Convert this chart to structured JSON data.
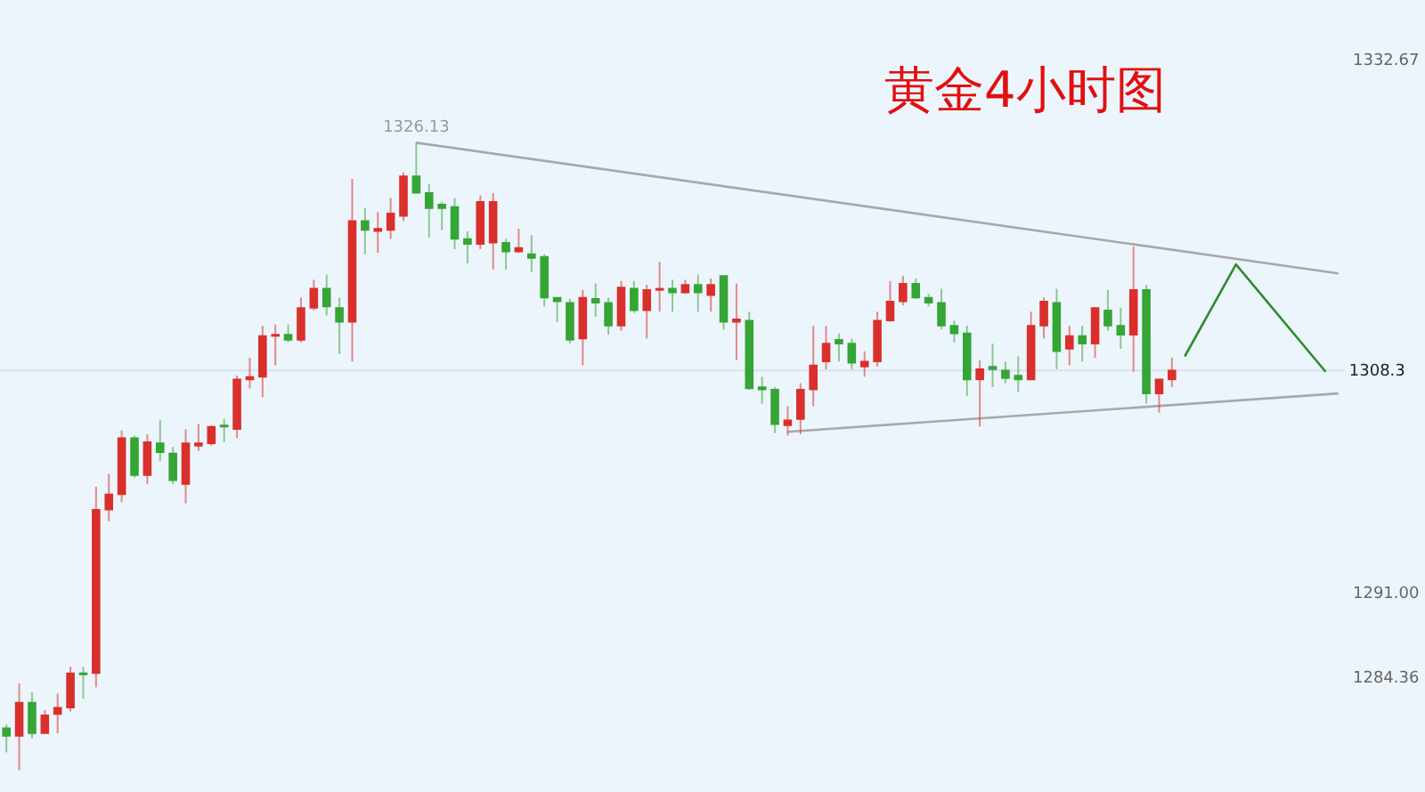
{
  "chart_data": {
    "type": "candlestick",
    "title": "黄金4小时图",
    "categories": [
      null,
      null,
      null,
      null,
      null,
      null,
      null,
      null,
      null,
      null,
      null,
      null,
      null,
      null,
      null,
      null,
      null,
      null,
      null,
      null,
      null,
      null,
      null,
      null,
      null,
      null,
      null,
      null,
      null,
      null,
      null,
      null,
      null,
      null,
      null,
      null,
      null,
      null,
      null,
      null,
      null,
      null,
      null,
      null,
      null,
      null,
      null,
      null,
      null,
      null,
      null,
      null,
      null,
      null,
      null,
      null,
      null,
      null,
      null,
      null,
      null,
      null,
      null,
      null,
      null,
      null,
      null,
      null,
      null,
      null,
      null,
      null,
      null,
      null,
      null,
      null,
      null,
      null,
      null,
      null,
      null,
      null,
      null,
      null,
      null,
      null,
      null,
      null,
      null,
      null,
      null,
      null,
      null,
      null,
      null,
      null,
      null,
      null,
      null,
      null,
      null,
      null,
      null,
      null,
      null
    ],
    "ohlc": [
      [
        1280.3,
        1280.6,
        1278.4,
        1279.7
      ],
      [
        1279.7,
        1283.8,
        1277.0,
        1282.3
      ],
      [
        1282.3,
        1283.1,
        1279.5,
        1279.9
      ],
      [
        1279.9,
        1281.7,
        1279.9,
        1281.3
      ],
      [
        1281.4,
        1283.0,
        1279.9,
        1281.9
      ],
      [
        1281.9,
        1285.1,
        1281.6,
        1284.6
      ],
      [
        1284.6,
        1285.1,
        1282.6,
        1284.5
      ],
      [
        1284.6,
        1299.2,
        1283.5,
        1297.4
      ],
      [
        1297.4,
        1300.2,
        1296.5,
        1298.6
      ],
      [
        1298.6,
        1303.6,
        1298.0,
        1303.0
      ],
      [
        1303.0,
        1303.2,
        1299.9,
        1300.1
      ],
      [
        1300.1,
        1303.3,
        1299.4,
        1302.7
      ],
      [
        1302.6,
        1304.4,
        1301.2,
        1301.9
      ],
      [
        1301.8,
        1302.3,
        1299.4,
        1299.7
      ],
      [
        1299.4,
        1303.7,
        1297.9,
        1302.6
      ],
      [
        1302.4,
        1304.1,
        1302.0,
        1302.6
      ],
      [
        1302.6,
        1304.0,
        1302.4,
        1303.9
      ],
      [
        1304.0,
        1304.5,
        1302.7,
        1303.9
      ],
      [
        1303.7,
        1307.9,
        1303.0,
        1307.6
      ],
      [
        1307.6,
        1309.3,
        1306.9,
        1307.8
      ],
      [
        1307.8,
        1311.8,
        1306.2,
        1311.0
      ],
      [
        1311.0,
        1311.9,
        1308.7,
        1311.1
      ],
      [
        1311.1,
        1311.9,
        1310.5,
        1310.7
      ],
      [
        1310.7,
        1314.0,
        1310.5,
        1313.2
      ],
      [
        1313.2,
        1315.4,
        1313.0,
        1314.7
      ],
      [
        1314.7,
        1315.8,
        1312.6,
        1313.3
      ],
      [
        1313.2,
        1314.0,
        1309.6,
        1312.1
      ],
      [
        1312.1,
        1323.3,
        1309.0,
        1320.0
      ],
      [
        1320.0,
        1321.0,
        1317.4,
        1319.3
      ],
      [
        1319.2,
        1320.7,
        1317.5,
        1319.4
      ],
      [
        1319.3,
        1321.8,
        1318.6,
        1320.6
      ],
      [
        1320.4,
        1323.8,
        1320.0,
        1323.5
      ],
      [
        1323.5,
        1326.13,
        1322.2,
        1322.2
      ],
      [
        1322.2,
        1322.9,
        1318.7,
        1321.0
      ],
      [
        1321.3,
        1321.5,
        1319.3,
        1321.0
      ],
      [
        1321.1,
        1321.8,
        1317.8,
        1318.6
      ],
      [
        1318.6,
        1319.2,
        1316.7,
        1318.2
      ],
      [
        1318.2,
        1322.0,
        1317.8,
        1321.5
      ],
      [
        1318.3,
        1322.2,
        1316.2,
        1321.5
      ],
      [
        1318.3,
        1318.6,
        1316.2,
        1317.6
      ],
      [
        1317.6,
        1319.4,
        1317.5,
        1317.9
      ],
      [
        1317.4,
        1318.9,
        1316.0,
        1317.1
      ],
      [
        1317.2,
        1317.4,
        1313.3,
        1314.0
      ],
      [
        1314.0,
        1314.0,
        1312.1,
        1313.7
      ],
      [
        1313.6,
        1313.9,
        1310.4,
        1310.7
      ],
      [
        1310.8,
        1314.6,
        1308.7,
        1314.0
      ],
      [
        1313.9,
        1315.1,
        1312.5,
        1313.6
      ],
      [
        1313.6,
        1314.0,
        1311.1,
        1311.8
      ],
      [
        1311.8,
        1315.3,
        1311.4,
        1314.8
      ],
      [
        1314.7,
        1315.3,
        1312.8,
        1313.0
      ],
      [
        1313.0,
        1315.0,
        1310.8,
        1314.6
      ],
      [
        1314.6,
        1316.8,
        1312.9,
        1314.7
      ],
      [
        1314.7,
        1315.4,
        1312.9,
        1314.4
      ],
      [
        1314.4,
        1315.4,
        1314.3,
        1315.0
      ],
      [
        1315.0,
        1315.8,
        1312.9,
        1314.4
      ],
      [
        1314.2,
        1315.5,
        1312.9,
        1315.0
      ],
      [
        1315.7,
        1315.7,
        1311.5,
        1312.1
      ],
      [
        1312.1,
        1315.1,
        1309.1,
        1312.3
      ],
      [
        1312.2,
        1312.9,
        1306.8,
        1306.9
      ],
      [
        1307.0,
        1307.8,
        1305.7,
        1306.8
      ],
      [
        1306.8,
        1307.0,
        1303.4,
        1304.1
      ],
      [
        1304.0,
        1305.5,
        1303.2,
        1304.4
      ],
      [
        1304.5,
        1307.3,
        1303.3,
        1306.8
      ],
      [
        1306.8,
        1311.8,
        1305.5,
        1308.7
      ],
      [
        1309.0,
        1311.8,
        1308.4,
        1310.4
      ],
      [
        1310.7,
        1311.2,
        1309.0,
        1310.4
      ],
      [
        1310.4,
        1310.8,
        1308.4,
        1308.9
      ],
      [
        1308.6,
        1309.8,
        1307.8,
        1309.0
      ],
      [
        1309.0,
        1312.9,
        1308.6,
        1312.2
      ],
      [
        1312.2,
        1315.3,
        1312.1,
        1313.7
      ],
      [
        1313.7,
        1315.7,
        1313.4,
        1315.1
      ],
      [
        1315.1,
        1315.5,
        1313.9,
        1314.0
      ],
      [
        1314.0,
        1314.3,
        1313.3,
        1313.6
      ],
      [
        1313.6,
        1314.7,
        1311.5,
        1311.8
      ],
      [
        1311.8,
        1312.2,
        1310.5,
        1311.2
      ],
      [
        1311.2,
        1311.8,
        1306.3,
        1307.6
      ],
      [
        1307.6,
        1309.1,
        1303.9,
        1308.4
      ],
      [
        1308.6,
        1310.4,
        1307.0,
        1308.4
      ],
      [
        1308.3,
        1309.0,
        1307.3,
        1307.7
      ],
      [
        1307.9,
        1309.4,
        1306.6,
        1307.6
      ],
      [
        1307.6,
        1312.9,
        1307.6,
        1311.8
      ],
      [
        1311.8,
        1314.0,
        1310.8,
        1313.7
      ],
      [
        1313.6,
        1314.7,
        1308.4,
        1309.8
      ],
      [
        1310.0,
        1311.8,
        1308.7,
        1311.0
      ],
      [
        1311.0,
        1311.8,
        1309.0,
        1310.4
      ],
      [
        1310.4,
        1313.2,
        1309.3,
        1313.2
      ],
      [
        1313.0,
        1314.6,
        1311.4,
        1311.8
      ],
      [
        1311.8,
        1313.2,
        1310.0,
        1311.1
      ],
      [
        1311.1,
        1318.0,
        1308.2,
        1314.6
      ],
      [
        1314.6,
        1315.0,
        1305.7,
        1306.5
      ],
      [
        1306.5,
        1307.6,
        1305.0,
        1307.6
      ],
      [
        1307.6,
        1309.3,
        1307.0,
        1308.3
      ],
      null,
      null,
      null,
      null,
      null,
      null,
      null,
      null,
      null,
      null,
      null,
      null,
      null
    ],
    "series": [
      {
        "type": "line",
        "color": "#a8a8a8",
        "line_style": "solid",
        "values": [
          null,
          null,
          null,
          null,
          null,
          null,
          null,
          null,
          null,
          null,
          null,
          null,
          null,
          null,
          null,
          null,
          null,
          null,
          null,
          null,
          null,
          null,
          null,
          null,
          null,
          null,
          null,
          null,
          null,
          null,
          null,
          null,
          1326.13,
          null,
          null,
          null,
          null,
          null,
          null,
          null,
          null,
          null,
          null,
          null,
          null,
          null,
          null,
          null,
          null,
          null,
          null,
          null,
          null,
          null,
          null,
          null,
          null,
          null,
          null,
          null,
          null,
          null,
          null,
          null,
          null,
          null,
          null,
          null,
          null,
          null,
          null,
          null,
          null,
          null,
          null,
          null,
          null,
          null,
          null,
          null,
          null,
          null,
          null,
          null,
          null,
          null,
          null,
          null,
          null,
          null,
          null,
          null,
          null,
          null,
          null,
          null,
          null,
          null,
          null,
          null,
          null,
          null,
          null,
          null,
          1315.9
        ]
      },
      {
        "type": "line",
        "color": "#a8a8a8",
        "line_style": "solid",
        "values": [
          null,
          null,
          null,
          null,
          null,
          null,
          null,
          null,
          null,
          null,
          null,
          null,
          null,
          null,
          null,
          null,
          null,
          null,
          null,
          null,
          null,
          null,
          null,
          null,
          null,
          null,
          null,
          null,
          null,
          null,
          null,
          null,
          null,
          null,
          null,
          null,
          null,
          null,
          null,
          null,
          null,
          null,
          null,
          null,
          null,
          null,
          null,
          null,
          null,
          null,
          null,
          null,
          null,
          null,
          null,
          null,
          null,
          null,
          null,
          null,
          null,
          1303.5,
          null,
          null,
          null,
          null,
          null,
          null,
          null,
          null,
          null,
          null,
          null,
          null,
          null,
          null,
          null,
          null,
          null,
          null,
          null,
          null,
          null,
          null,
          null,
          null,
          null,
          null,
          null,
          null,
          null,
          null,
          null,
          null,
          null,
          null,
          null,
          null,
          null,
          null,
          null,
          null,
          null,
          null,
          1306.5
        ]
      },
      {
        "type": "line",
        "color": "#2e8b2e",
        "line_style": "solid",
        "values": [
          null,
          null,
          null,
          null,
          null,
          null,
          null,
          null,
          null,
          null,
          null,
          null,
          null,
          null,
          null,
          null,
          null,
          null,
          null,
          null,
          null,
          null,
          null,
          null,
          null,
          null,
          null,
          null,
          null,
          null,
          null,
          null,
          null,
          null,
          null,
          null,
          null,
          null,
          null,
          null,
          null,
          null,
          null,
          null,
          null,
          null,
          null,
          null,
          null,
          null,
          null,
          null,
          null,
          null,
          null,
          null,
          null,
          null,
          null,
          null,
          null,
          null,
          null,
          null,
          null,
          null,
          null,
          null,
          null,
          null,
          null,
          null,
          null,
          null,
          null,
          null,
          null,
          null,
          null,
          null,
          null,
          null,
          null,
          null,
          null,
          null,
          null,
          null,
          null,
          null,
          null,
          null,
          1309.4,
          null,
          null,
          null,
          1316.6,
          null,
          null,
          null,
          null,
          null,
          null,
          1308.2,
          null
        ]
      }
    ],
    "ylim": [
      1275.3,
      1337.3
    ],
    "yticks": [
      1332.67,
      {
        "value": 1291,
        "label": "1291.00"
      },
      1284.36
    ],
    "tick_labels": "y",
    "ref_lines": [
      {
        "axis": "y",
        "value": 1308.3,
        "label": "1308.3"
      }
    ],
    "annotations": [
      {
        "text": "1326.13",
        "y": 1326.13
      }
    ]
  }
}
